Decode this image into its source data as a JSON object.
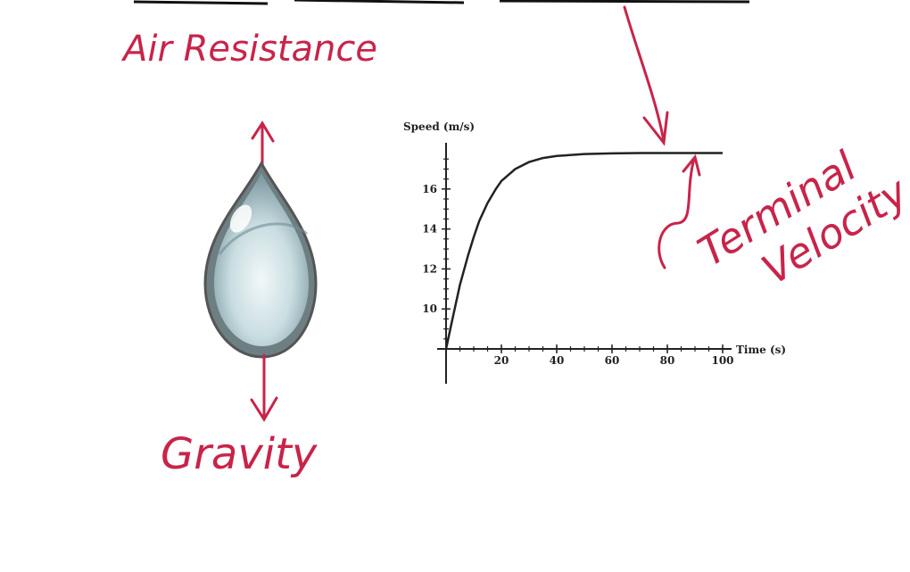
{
  "annotations": {
    "air_resistance": "Air Resistance",
    "gravity": "Gravity",
    "terminal_velocity_1": "Terminal",
    "terminal_velocity_2": "Velocity"
  },
  "colors": {
    "ink": "#c8244a",
    "curve": "#222222",
    "drop_fill": "#a9c6cd",
    "drop_outline": "#555555"
  },
  "chart_data": {
    "type": "line",
    "ylabel": "Speed (m/s)",
    "xlabel": "Time (s)",
    "x_ticks": [
      "20",
      "40",
      "60",
      "80",
      "100"
    ],
    "y_ticks": [
      "10",
      "12",
      "14",
      "16"
    ],
    "xlim": [
      0,
      100
    ],
    "ylim": [
      8,
      18
    ],
    "series": [
      {
        "x": [
          0,
          2,
          5,
          8,
          10,
          12,
          15,
          18,
          20,
          25,
          30,
          35,
          40,
          50,
          60,
          70,
          80,
          90,
          100
        ],
        "y": [
          8,
          9.3,
          11.2,
          12.7,
          13.6,
          14.4,
          15.3,
          16.0,
          16.4,
          17.0,
          17.35,
          17.55,
          17.65,
          17.75,
          17.78,
          17.8,
          17.8,
          17.8,
          17.8
        ]
      }
    ]
  }
}
